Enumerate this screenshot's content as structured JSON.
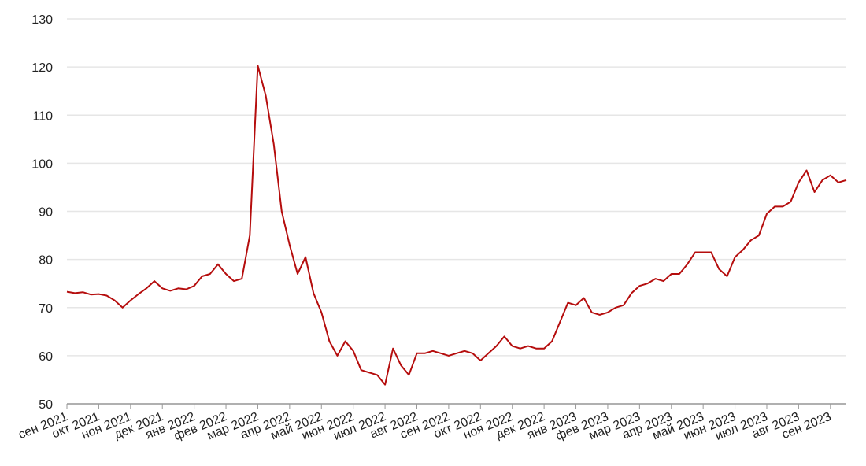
{
  "chart_data": {
    "type": "line",
    "color": "#b50d0d",
    "grid": true,
    "ylim": [
      50,
      130
    ],
    "yticks": [
      50,
      60,
      70,
      80,
      90,
      100,
      110,
      120,
      130
    ],
    "categories": [
      "сен 2021",
      null,
      null,
      null,
      "окт 2021",
      null,
      null,
      null,
      "ноя 2021",
      null,
      null,
      null,
      "дек 2021",
      null,
      null,
      null,
      "янв 2022",
      null,
      null,
      null,
      "фев 2022",
      null,
      null,
      null,
      "мар 2022",
      null,
      null,
      null,
      "апр 2022",
      null,
      null,
      null,
      "май 2022",
      null,
      null,
      null,
      "июн 2022",
      null,
      null,
      null,
      "июл 2022",
      null,
      null,
      null,
      "авг 2022",
      null,
      null,
      null,
      "сен 2022",
      null,
      null,
      null,
      "окт 2022",
      null,
      null,
      null,
      "ноя 2022",
      null,
      null,
      null,
      "дек 2022",
      null,
      null,
      null,
      "янв 2023",
      null,
      null,
      null,
      "фев 2023",
      null,
      null,
      null,
      "мар 2023",
      null,
      null,
      null,
      "апр 2023",
      null,
      null,
      null,
      "май 2023",
      null,
      null,
      null,
      "июн 2023",
      null,
      null,
      null,
      "июл 2023",
      null,
      null,
      null,
      "авг 2023",
      null,
      null,
      null,
      "сен 2023",
      null,
      null
    ],
    "values": [
      73.3,
      73.0,
      73.2,
      72.7,
      72.8,
      72.5,
      71.5,
      70.0,
      71.5,
      72.8,
      74.0,
      75.5,
      74.0,
      73.5,
      74.0,
      73.8,
      74.5,
      76.5,
      77.0,
      79.0,
      77.0,
      75.5,
      76.0,
      85.0,
      120.3,
      114.0,
      104.0,
      90.0,
      83.0,
      77.0,
      80.5,
      73.0,
      69.0,
      63.0,
      60.0,
      63.0,
      61.0,
      57.0,
      56.5,
      56.0,
      54.0,
      61.5,
      58.0,
      56.0,
      60.5,
      60.5,
      61.0,
      60.5,
      60.0,
      60.5,
      61.0,
      60.5,
      59.0,
      60.5,
      62.0,
      64.0,
      62.0,
      61.5,
      62.0,
      61.5,
      61.5,
      63.0,
      67.0,
      71.0,
      70.5,
      72.0,
      69.0,
      68.5,
      69.0,
      70.0,
      70.5,
      73.0,
      74.5,
      75.0,
      76.0,
      75.5,
      77.0,
      77.0,
      79.0,
      81.5,
      81.5,
      81.5,
      78.0,
      76.5,
      80.5,
      82.0,
      84.0,
      85.0,
      89.5,
      91.0,
      91.0,
      92.0,
      96.0,
      98.5,
      94.0,
      96.5,
      97.5,
      96.0,
      96.5
    ]
  }
}
